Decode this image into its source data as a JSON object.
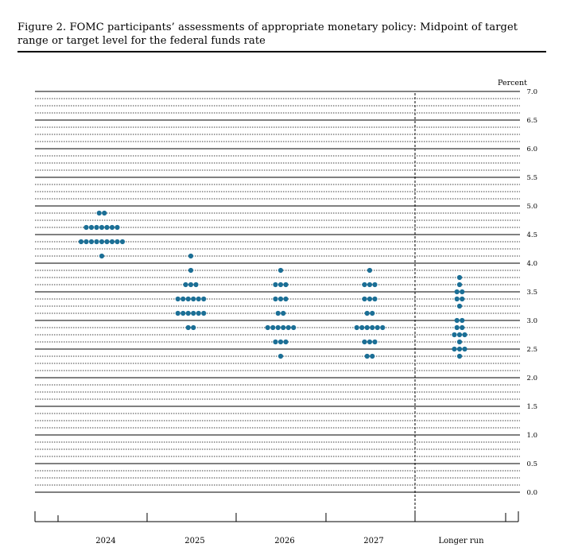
{
  "title": "Figure 2.  FOMC participants’ assessments of appropriate monetary policy: Midpoint of target range or target level for the federal funds rate",
  "chart_data": {
    "type": "scatter",
    "subtype": "dot-plot",
    "ylabel": "Percent",
    "ylim": [
      0.0,
      7.0
    ],
    "yticks": [
      0.0,
      0.5,
      1.0,
      1.5,
      2.0,
      2.5,
      3.0,
      3.5,
      4.0,
      4.5,
      5.0,
      5.5,
      6.0,
      6.5,
      7.0
    ],
    "ytick_labels": [
      "0.0",
      "0.5",
      "1.0",
      "1.5",
      "2.0",
      "2.5",
      "3.0",
      "3.5",
      "4.0",
      "4.5",
      "5.0",
      "5.5",
      "6.0",
      "6.5",
      "7.0"
    ],
    "gridlines": "solid at whole and half percents, dotted at eighths in between",
    "separator": "dashed vertical line before Longer run",
    "categories": [
      "2024",
      "2025",
      "2026",
      "2027",
      "Longer run"
    ],
    "dot_color": "#1b6f96",
    "series": [
      {
        "category": "2024",
        "points": [
          {
            "y": 4.875,
            "count": 2
          },
          {
            "y": 4.625,
            "count": 7
          },
          {
            "y": 4.375,
            "count": 9
          },
          {
            "y": 4.125,
            "count": 1
          }
        ]
      },
      {
        "category": "2025",
        "points": [
          {
            "y": 4.125,
            "count": 1
          },
          {
            "y": 3.875,
            "count": 1
          },
          {
            "y": 3.625,
            "count": 3
          },
          {
            "y": 3.375,
            "count": 6
          },
          {
            "y": 3.125,
            "count": 6
          },
          {
            "y": 2.875,
            "count": 2
          }
        ]
      },
      {
        "category": "2026",
        "points": [
          {
            "y": 3.875,
            "count": 1
          },
          {
            "y": 3.625,
            "count": 3
          },
          {
            "y": 3.375,
            "count": 3
          },
          {
            "y": 3.125,
            "count": 2
          },
          {
            "y": 2.875,
            "count": 6
          },
          {
            "y": 2.625,
            "count": 3
          },
          {
            "y": 2.375,
            "count": 1
          }
        ]
      },
      {
        "category": "2027",
        "points": [
          {
            "y": 3.875,
            "count": 1
          },
          {
            "y": 3.625,
            "count": 3
          },
          {
            "y": 3.375,
            "count": 3
          },
          {
            "y": 3.125,
            "count": 2
          },
          {
            "y": 2.875,
            "count": 6
          },
          {
            "y": 2.625,
            "count": 3
          },
          {
            "y": 2.375,
            "count": 2
          }
        ]
      },
      {
        "category": "Longer run",
        "points": [
          {
            "y": 3.75,
            "count": 1
          },
          {
            "y": 3.625,
            "count": 1
          },
          {
            "y": 3.5,
            "count": 2
          },
          {
            "y": 3.375,
            "count": 2
          },
          {
            "y": 3.25,
            "count": 1
          },
          {
            "y": 3.0,
            "count": 2
          },
          {
            "y": 2.875,
            "count": 2
          },
          {
            "y": 2.75,
            "count": 3
          },
          {
            "y": 2.625,
            "count": 1
          },
          {
            "y": 2.5,
            "count": 3
          },
          {
            "y": 2.375,
            "count": 1
          }
        ]
      }
    ]
  }
}
